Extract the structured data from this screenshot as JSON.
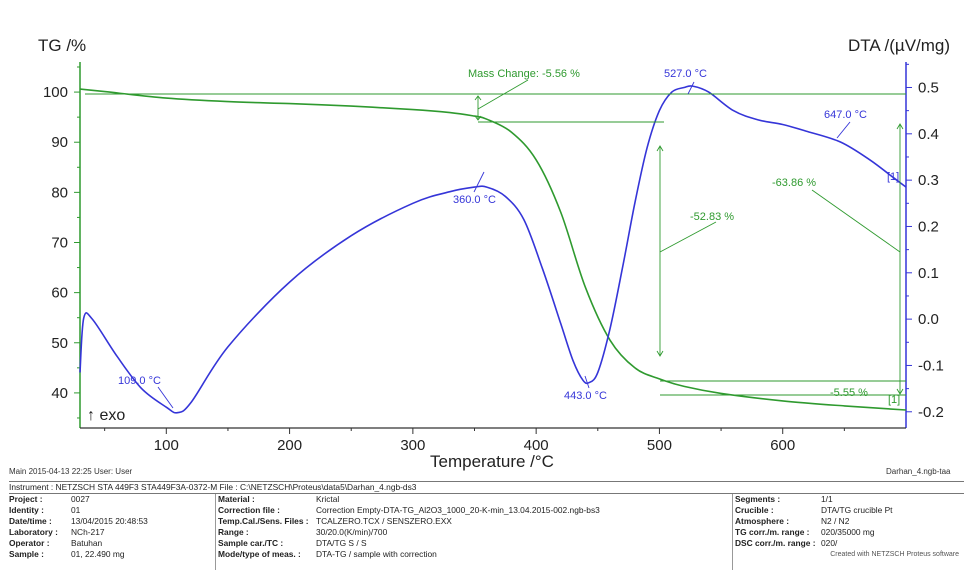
{
  "chart_data": {
    "type": "line",
    "xlabel": "Temperature /°C",
    "ylabel_left": "TG /%",
    "ylabel_right": "DTA /(µV/mg)",
    "xlim": [
      30,
      700
    ],
    "ylim_left": [
      33,
      106
    ],
    "ylim_right": [
      -0.235,
      0.555
    ],
    "x_ticks": [
      100,
      200,
      300,
      400,
      500,
      600
    ],
    "y_ticks_left": [
      40,
      50,
      60,
      70,
      80,
      90,
      100
    ],
    "y_ticks_right": [
      -0.2,
      -0.1,
      0.0,
      0.1,
      0.2,
      0.3,
      0.4,
      0.5
    ],
    "x_tick_labels": [
      "100",
      "200",
      "300",
      "400",
      "500",
      "600"
    ],
    "y_tick_labels_left": [
      "40",
      "50",
      "60",
      "70",
      "80",
      "90",
      "100"
    ],
    "y_tick_labels_right": [
      "-0.2",
      "-0.1",
      "0.0",
      "0.1",
      "0.2",
      "0.3",
      "0.4",
      "0.5"
    ],
    "series": [
      {
        "color": "#2f9a2f",
        "axis": "left",
        "x": [
          30,
          50,
          100,
          150,
          200,
          250,
          300,
          330,
          350,
          360,
          380,
          400,
          420,
          440,
          460,
          480,
          500,
          520,
          550,
          600,
          650,
          700
        ],
        "y": [
          100.6,
          100.1,
          98.8,
          98.1,
          97.7,
          97.2,
          96.5,
          95.9,
          95.2,
          94.6,
          92.0,
          86.5,
          76.0,
          61.0,
          50.5,
          45.0,
          42.8,
          41.3,
          39.9,
          38.4,
          37.4,
          36.6
        ]
      },
      {
        "color": "#3535d8",
        "axis": "right",
        "x": [
          30,
          33,
          40,
          60,
          80,
          100,
          109,
          120,
          150,
          200,
          250,
          300,
          330,
          350,
          360,
          375,
          390,
          405,
          420,
          430,
          438,
          443,
          450,
          460,
          470,
          480,
          490,
          500,
          510,
          520,
          527,
          540,
          560,
          580,
          600,
          620,
          647,
          670,
          690,
          700
        ],
        "y": [
          -0.115,
          0.002,
          -0.0,
          -0.08,
          -0.15,
          -0.19,
          -0.202,
          -0.18,
          -0.06,
          0.08,
          0.18,
          0.25,
          0.275,
          0.285,
          0.285,
          0.265,
          0.215,
          0.11,
          -0.01,
          -0.09,
          -0.132,
          -0.137,
          -0.115,
          -0.02,
          0.11,
          0.25,
          0.37,
          0.45,
          0.49,
          0.5,
          0.503,
          0.49,
          0.45,
          0.43,
          0.42,
          0.405,
          0.382,
          0.345,
          0.305,
          0.285
        ]
      }
    ],
    "peaks": [
      {
        "label": "109.0 °C"
      },
      {
        "label": "360.0 °C"
      },
      {
        "label": "443.0 °C"
      },
      {
        "label": "527.0 °C"
      },
      {
        "label": "647.0 °C"
      }
    ],
    "annotations": {
      "mass_change_top": "Mass Change: -5.56 %",
      "mass_change_mid": "-52.83 %",
      "mass_change_total": "-63.86 %",
      "mass_change_bottom": "-5.55 %",
      "marker_1": "[1]",
      "marker_2": "[1]",
      "exo": "↑ exo"
    }
  },
  "footer": {
    "main": "Main   2015-04-13 22:25   User: User",
    "file_tag": "Darhan_4.ngb-taa"
  },
  "info": {
    "instrument_row": "Instrument :  NETZSCH STA 449F3 STA449F3A-0372-M  File :  C:\\NETZSCH\\Proteus\\data5\\Darhan_4.ngb-ds3",
    "col1": [
      {
        "label": "Project :",
        "value": "0027"
      },
      {
        "label": "Identity :",
        "value": "01"
      },
      {
        "label": "Date/time :",
        "value": "13/04/2015 20:48:53"
      },
      {
        "label": "Laboratory :",
        "value": "NCh-217"
      },
      {
        "label": "Operator :",
        "value": "Batuhan"
      },
      {
        "label": "Sample :",
        "value": "01, 22.490 mg"
      }
    ],
    "col2": [
      {
        "label": "Material :",
        "value": "Krictal"
      },
      {
        "label": "Correction file :",
        "value": "Correction Empty-DTA-TG_Al2O3_1000_20-K-min_13.04.2015-002.ngb-bs3"
      },
      {
        "label": "Temp.Cal./Sens. Files :",
        "value": "TCALZERO.TCX / SENSZERO.EXX"
      },
      {
        "label": "Range :",
        "value": "30/20.0(K/min)/700"
      },
      {
        "label": "Sample car./TC :",
        "value": "DTA/TG S / S"
      },
      {
        "label": "Mode/type of meas. :",
        "value": "DTA-TG / sample with correction"
      }
    ],
    "col3": [
      {
        "label": "Segments :",
        "value": "1/1"
      },
      {
        "label": "Crucible :",
        "value": "DTA/TG crucible Pt"
      },
      {
        "label": "Atmosphere :",
        "value": "N2 / N2"
      },
      {
        "label": "TG corr./m. range :",
        "value": "020/35000 mg"
      },
      {
        "label": "DSC corr./m. range :",
        "value": "020/"
      }
    ],
    "created": "Created with NETZSCH Proteus software"
  }
}
